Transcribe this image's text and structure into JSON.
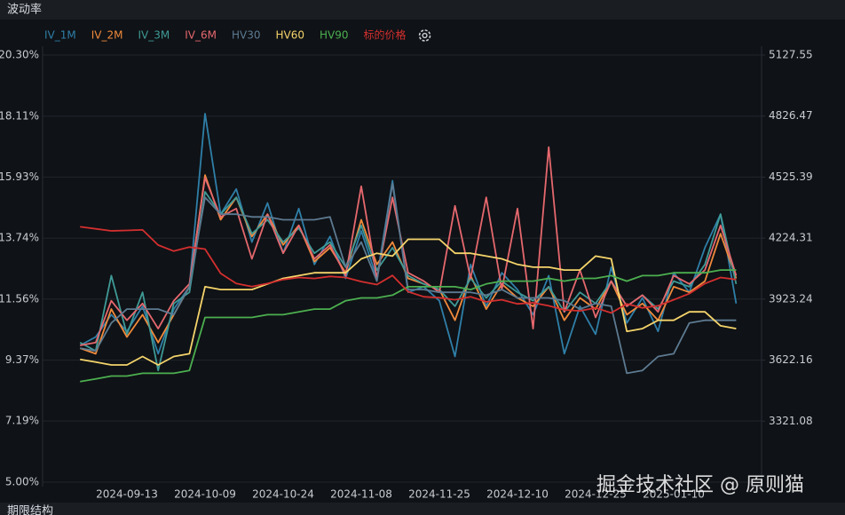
{
  "chart_data": {
    "type": "line",
    "title": "波动率",
    "section_label": "期限结构",
    "watermark": "掘金技术社区 @ 原则猫",
    "grid": true,
    "legend": "top-left",
    "categories": [
      null,
      null,
      null,
      "2024-09-13",
      null,
      null,
      null,
      null,
      "2024-10-09",
      null,
      null,
      null,
      null,
      "2024-10-24",
      null,
      null,
      null,
      null,
      "2024-11-08",
      null,
      null,
      null,
      null,
      "2024-11-25",
      null,
      null,
      null,
      null,
      "2024-12-10",
      null,
      null,
      null,
      null,
      "2024-12-25",
      null,
      null,
      null,
      null,
      "2025-01-10",
      null,
      null,
      null,
      null
    ],
    "ylim": [
      5,
      20.3
    ],
    "yticks": [
      {
        "value": 5,
        "label": "5.00%"
      },
      {
        "value": 7.19,
        "label": "7.19%"
      },
      {
        "value": 9.37,
        "label": "9.37%"
      },
      {
        "value": 11.56,
        "label": "11.56%"
      },
      {
        "value": 13.74,
        "label": "13.74%"
      },
      {
        "value": 15.93,
        "label": "15.93%"
      },
      {
        "value": 18.11,
        "label": "18.11%"
      },
      {
        "value": 20.3,
        "label": "20.30%"
      }
    ],
    "y2lim": [
      3020,
      5127.55
    ],
    "y2ticks": [
      3321.08,
      3622.16,
      3923.24,
      4224.31,
      4525.39,
      4826.47,
      5127.55
    ],
    "series": [
      {
        "name": "IV_1M",
        "color": "#2f7fa8",
        "values": [
          9.9,
          10.2,
          11.0,
          10.4,
          11.3,
          9.6,
          11.2,
          12.0,
          18.2,
          14.6,
          15.5,
          13.6,
          15.0,
          13.2,
          14.8,
          12.8,
          13.8,
          12.3,
          14.0,
          12.3,
          15.8,
          11.8,
          12.0,
          11.5,
          9.5,
          12.8,
          11.3,
          12.5,
          11.9,
          11.0,
          12.4,
          9.6,
          11.3,
          10.3,
          12.7,
          10.7,
          11.6,
          10.4,
          12.5,
          11.8,
          13.4,
          14.6,
          11.4
        ]
      },
      {
        "name": "IV_2M",
        "color": "#f08a3c",
        "values": [
          9.8,
          9.6,
          11.2,
          10.2,
          11.0,
          10.0,
          11.0,
          12.0,
          16.0,
          14.4,
          15.2,
          13.8,
          14.6,
          13.5,
          14.2,
          12.9,
          13.4,
          12.5,
          14.4,
          12.8,
          13.6,
          12.3,
          12.1,
          11.9,
          10.8,
          12.4,
          11.2,
          12.1,
          11.6,
          11.3,
          12.0,
          10.8,
          11.6,
          11.2,
          12.2,
          11.0,
          11.4,
          10.8,
          12.0,
          11.8,
          12.2,
          13.9,
          12.3
        ]
      },
      {
        "name": "IV_3M",
        "color": "#3f9a96",
        "values": [
          10.0,
          9.7,
          12.4,
          10.3,
          11.8,
          9.0,
          11.4,
          11.8,
          15.4,
          14.6,
          15.2,
          13.9,
          14.4,
          13.6,
          14.1,
          13.2,
          13.6,
          12.7,
          14.2,
          12.6,
          13.4,
          12.4,
          12.1,
          11.9,
          11.3,
          12.3,
          11.6,
          12.2,
          11.8,
          11.5,
          12.0,
          11.1,
          11.8,
          11.4,
          12.2,
          11.3,
          11.7,
          11.2,
          12.2,
          12.0,
          12.8,
          14.6,
          12.1
        ]
      },
      {
        "name": "IV_6M",
        "color": "#e5686e",
        "values": [
          9.9,
          10.0,
          11.5,
          10.8,
          11.4,
          10.5,
          11.5,
          12.1,
          15.9,
          14.5,
          14.8,
          13.0,
          14.6,
          13.2,
          14.2,
          13.0,
          13.5,
          12.4,
          15.6,
          12.3,
          15.2,
          12.5,
          12.2,
          11.8,
          14.9,
          12.3,
          15.2,
          11.9,
          14.8,
          10.5,
          17.0,
          11.1,
          12.6,
          10.9,
          12.2,
          11.3,
          11.7,
          11.1,
          12.4,
          12.1,
          12.6,
          14.2,
          12.4
        ]
      },
      {
        "name": "HV30",
        "color": "#5d7a91",
        "values": [
          9.8,
          9.7,
          10.7,
          11.2,
          11.2,
          11.2,
          11.0,
          12.0,
          15.2,
          14.6,
          14.6,
          14.5,
          14.5,
          14.4,
          14.4,
          14.4,
          14.5,
          12.7,
          13.6,
          12.2,
          15.7,
          11.9,
          11.9,
          11.8,
          11.8,
          11.8,
          11.7,
          11.9,
          11.6,
          11.6,
          11.6,
          11.5,
          11.2,
          11.4,
          11.3,
          8.9,
          9.0,
          9.5,
          9.6,
          10.7,
          10.8,
          10.8,
          10.8
        ]
      },
      {
        "name": "HV60",
        "color": "#f5d46b",
        "values": [
          9.4,
          9.3,
          9.2,
          9.2,
          9.5,
          9.2,
          9.5,
          9.6,
          12.0,
          11.9,
          11.9,
          11.9,
          12.1,
          12.3,
          12.4,
          12.5,
          12.5,
          12.5,
          13.0,
          13.2,
          13.1,
          13.7,
          13.7,
          13.7,
          13.2,
          13.2,
          13.1,
          13.0,
          12.8,
          12.7,
          12.7,
          12.6,
          12.6,
          13.1,
          13.0,
          10.4,
          10.5,
          10.8,
          10.8,
          11.1,
          11.1,
          10.6,
          10.5
        ]
      },
      {
        "name": "HV90",
        "color": "#4caf50",
        "values": [
          8.6,
          8.7,
          8.8,
          8.8,
          8.9,
          8.9,
          8.9,
          9.0,
          10.9,
          10.9,
          10.9,
          10.9,
          11.0,
          11.0,
          11.1,
          11.2,
          11.2,
          11.5,
          11.6,
          11.6,
          11.7,
          12.0,
          12.0,
          12.0,
          12.0,
          11.9,
          12.1,
          12.2,
          12.2,
          12.2,
          12.3,
          12.2,
          12.3,
          12.3,
          12.4,
          12.2,
          12.4,
          12.4,
          12.5,
          12.5,
          12.5,
          12.6,
          12.6
        ]
      },
      {
        "name": "标的价格",
        "color": "#d32f2f",
        "axis": "y2",
        "values": [
          4280,
          4270,
          4260,
          4262,
          4265,
          4190,
          4160,
          4180,
          4170,
          4050,
          4000,
          3985,
          4000,
          4020,
          4030,
          4025,
          4035,
          4030,
          4010,
          3995,
          4040,
          3960,
          3935,
          3930,
          3920,
          3935,
          3910,
          3920,
          3900,
          3905,
          3890,
          3870,
          3865,
          3880,
          3855,
          3900,
          3880,
          3890,
          3920,
          3950,
          4000,
          4030,
          4020
        ]
      }
    ]
  }
}
